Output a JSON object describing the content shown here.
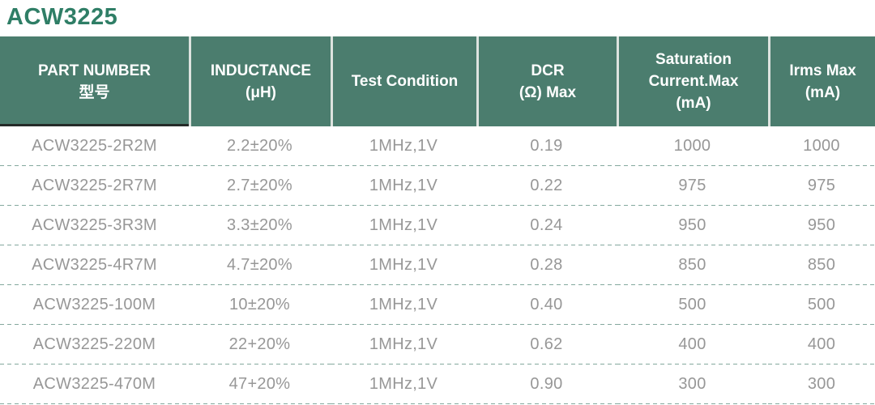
{
  "page": {
    "title": "ACW3225"
  },
  "colors": {
    "title_green": "#2f7e66",
    "header_background": "#4b7d6e",
    "header_text": "#ffffff",
    "header_separator": "#dde3df",
    "first_column_underline": "#252b28",
    "row_text": "#979797",
    "dashed_divider": "#84a89e"
  },
  "table": {
    "columns": [
      {
        "id": "part-number",
        "label_lines": [
          "PART NUMBER",
          "型号"
        ]
      },
      {
        "id": "inductance",
        "label_lines": [
          "INDUCTANCE",
          "(μH)"
        ]
      },
      {
        "id": "test-condition",
        "label_lines": [
          "Test Condition"
        ]
      },
      {
        "id": "dcr",
        "label_lines": [
          "DCR",
          "(Ω) Max"
        ]
      },
      {
        "id": "saturation",
        "label_lines": [
          "Saturation",
          "Current.Max",
          "(mA)"
        ]
      },
      {
        "id": "irms",
        "label_lines": [
          "Irms Max",
          "(mA)"
        ]
      }
    ],
    "rows": [
      [
        "ACW3225-2R2M",
        "2.2±20%",
        "1MHz,1V",
        "0.19",
        "1000",
        "1000"
      ],
      [
        "ACW3225-2R7M",
        "2.7±20%",
        "1MHz,1V",
        "0.22",
        "975",
        "975"
      ],
      [
        "ACW3225-3R3M",
        "3.3±20%",
        "1MHz,1V",
        "0.24",
        "950",
        "950"
      ],
      [
        "ACW3225-4R7M",
        "4.7±20%",
        "1MHz,1V",
        "0.28",
        "850",
        "850"
      ],
      [
        "ACW3225-100M",
        "10±20%",
        "1MHz,1V",
        "0.40",
        "500",
        "500"
      ],
      [
        "ACW3225-220M",
        "22+20%",
        "1MHz,1V",
        "0.62",
        "400",
        "400"
      ],
      [
        "ACW3225-470M",
        "47+20%",
        "1MHz,1V",
        "0.90",
        "300",
        "300"
      ]
    ]
  }
}
